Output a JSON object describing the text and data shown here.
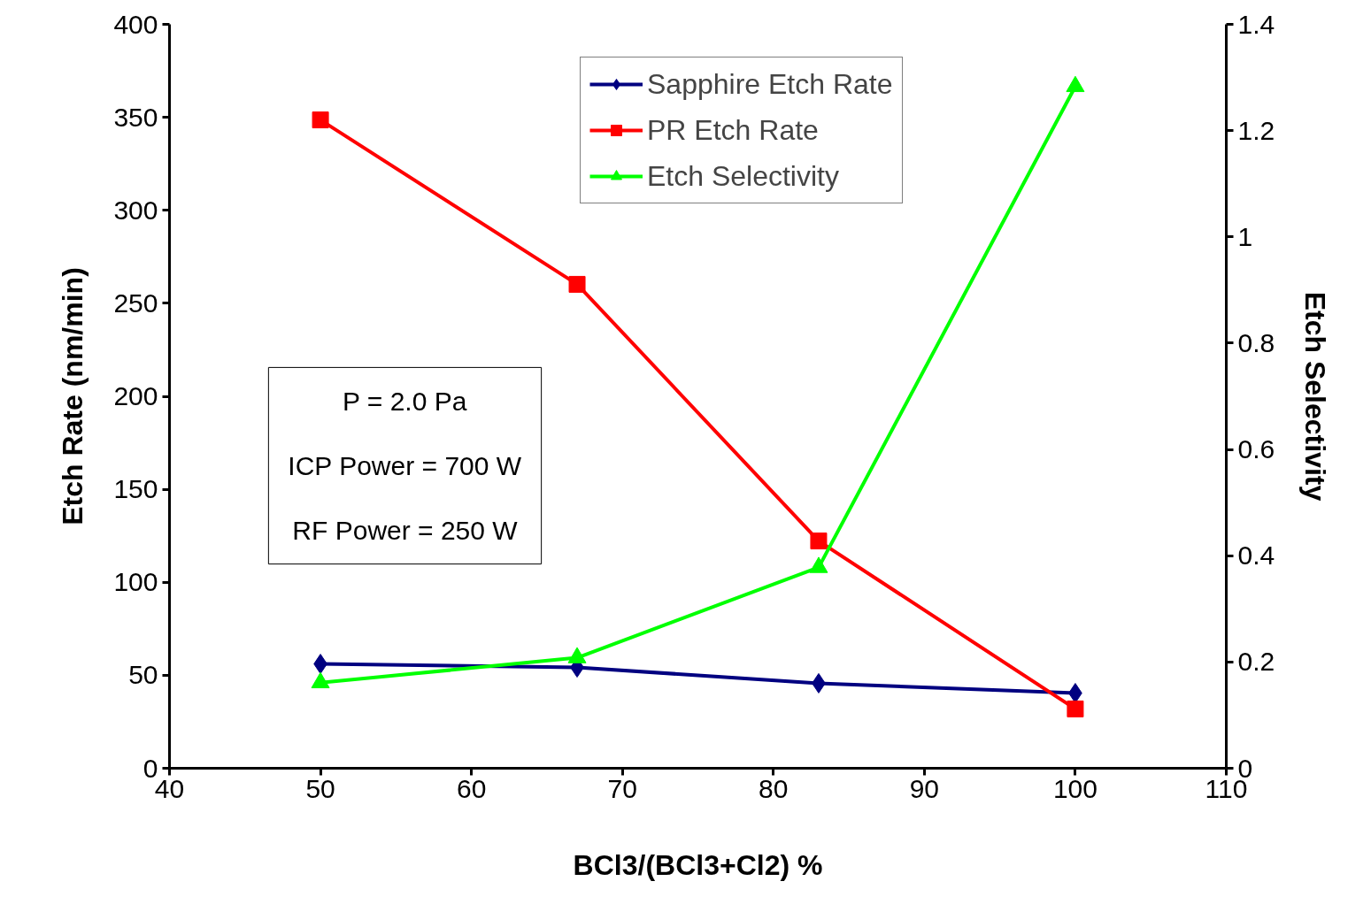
{
  "chart_data": {
    "type": "line",
    "xlabel": "BCl3/(BCl3+Cl2) %",
    "ylabel": "Etch Rate (nm/min)",
    "y2label": "Etch Selectivity",
    "x": [
      50,
      67,
      83,
      100
    ],
    "series": [
      {
        "name": "Sapphire Etch Rate",
        "color": "#000080",
        "marker": "diamond",
        "values": [
          56.1,
          54.2,
          45.7,
          40.4
        ]
      },
      {
        "name": "PR Etch Rate",
        "color": "#ff0000",
        "marker": "square",
        "values": [
          348.6,
          260.2,
          122.2,
          31.9
        ]
      },
      {
        "name": "Etch Selectivity",
        "color": "#00ff00",
        "marker": "triangle",
        "axis": "y2",
        "values": [
          0.161,
          0.208,
          0.378,
          1.283
        ]
      }
    ],
    "xlim": [
      40,
      110
    ],
    "xticks": [
      40,
      50,
      60,
      70,
      80,
      90,
      100,
      110
    ],
    "ylim": [
      0,
      400
    ],
    "yticks": [
      0,
      50,
      100,
      150,
      200,
      250,
      300,
      350,
      400
    ],
    "y2lim": [
      0,
      1.4
    ],
    "y2ticks": [
      0,
      0.2,
      0.4,
      0.6,
      0.8,
      1,
      1.2,
      1.4
    ],
    "annotations": [
      "P = 2.0 Pa",
      "ICP Power = 700 W",
      "RF Power = 250 W"
    ],
    "legend": "top",
    "grid": false,
    "line_style": "solid"
  }
}
